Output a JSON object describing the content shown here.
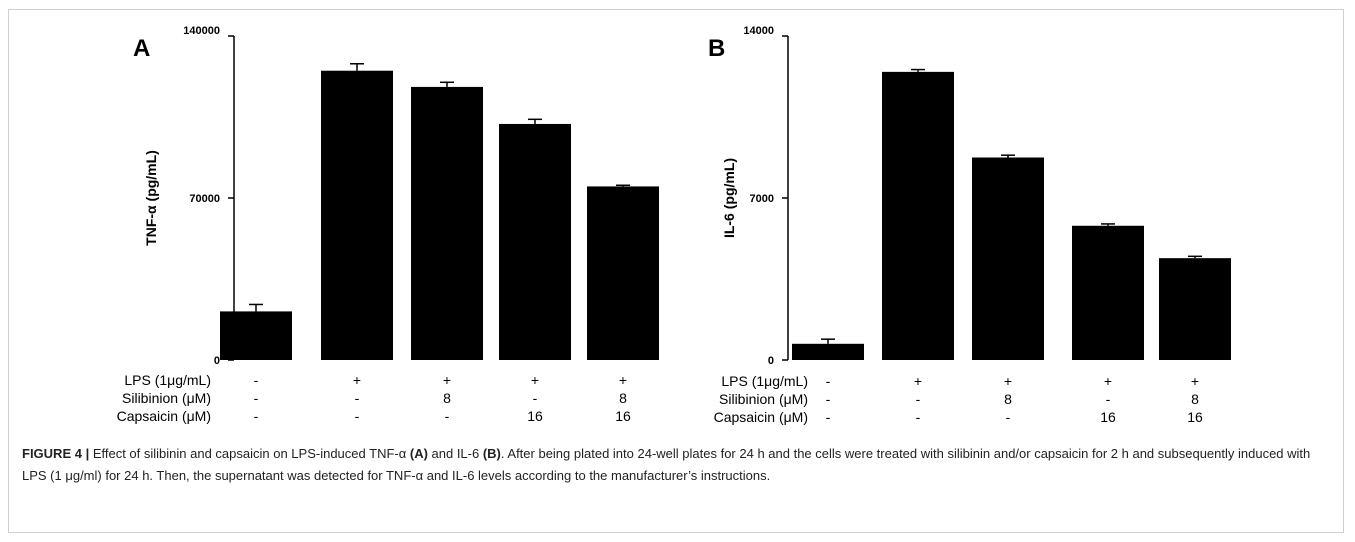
{
  "chart_data": [
    {
      "type": "bar",
      "panel_label": "A",
      "ylabel": "TNF-α (pg/mL)",
      "ylim": [
        0,
        140000
      ],
      "yticks": [
        "0",
        "70000",
        "140000"
      ],
      "categories": [
        "1",
        "2",
        "3",
        "4",
        "5"
      ],
      "values": [
        21000,
        125000,
        118000,
        102000,
        75000
      ],
      "errors": [
        3000,
        3000,
        2000,
        2000,
        500
      ],
      "condition_rows": [
        {
          "label": "LPS (1μg/mL)",
          "values": [
            "-",
            "+",
            "+",
            "+",
            "+"
          ]
        },
        {
          "label": "Silibinion (μM)",
          "values": [
            "-",
            "-",
            "8",
            "-",
            "8"
          ]
        },
        {
          "label": "Capsaicin (μM)",
          "values": [
            "-",
            "-",
            "-",
            "16",
            "16"
          ]
        }
      ],
      "colors": {
        "bar": "#000000"
      }
    },
    {
      "type": "bar",
      "panel_label": "B",
      "ylabel": "IL-6 (pg/mL)",
      "ylim": [
        0,
        14000
      ],
      "yticks": [
        "0",
        "7000",
        "14000"
      ],
      "categories": [
        "1",
        "2",
        "3",
        "4",
        "5"
      ],
      "values": [
        700,
        12450,
        8750,
        5800,
        4400
      ],
      "errors": [
        200,
        100,
        100,
        80,
        80
      ],
      "condition_rows": [
        {
          "label": "LPS (1μg/mL)",
          "values": [
            "-",
            "+",
            "+",
            "+",
            "+"
          ]
        },
        {
          "label": "Silibinion (μM)",
          "values": [
            "-",
            "-",
            "8",
            "-",
            "8"
          ]
        },
        {
          "label": "Capsaicin (μM)",
          "values": [
            "-",
            "-",
            "-",
            "16",
            "16"
          ]
        }
      ],
      "colors": {
        "bar": "#000000"
      }
    }
  ],
  "caption": {
    "label": "FIGURE 4 |",
    "text_1": " Effect of silibinin and capsaicin on LPS-induced TNF-α ",
    "ref_a": "(A)",
    "text_2": " and IL-6 ",
    "ref_b": "(B)",
    "text_3": ". After being plated into 24-well plates for 24 h and the cells were treated with silibinin and/or capsaicin for 2 h and subsequently induced with LPS (1 μg/ml) for 24 h. Then, the supernatant was detected for TNF-α and IL-6 levels according to the manufacturer’s instructions."
  }
}
